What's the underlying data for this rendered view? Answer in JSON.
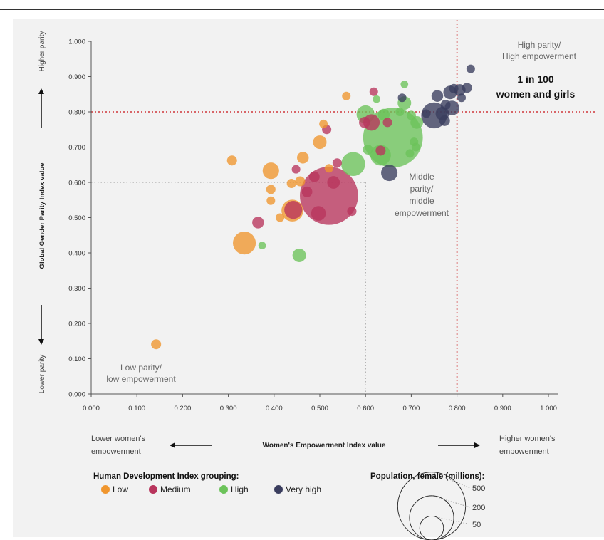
{
  "chart_data": {
    "type": "scatter",
    "title": "",
    "xlabel": "Women's Empowerment Index value",
    "ylabel": "Global Gender Parity Index value",
    "xlim": [
      0,
      1
    ],
    "ylim": [
      0,
      1
    ],
    "x_ticks": [
      "0.000",
      "0.100",
      "0.200",
      "0.300",
      "0.400",
      "0.500",
      "0.600",
      "0.700",
      "0.800",
      "0.900",
      "1.000"
    ],
    "y_ticks": [
      "0.000",
      "0.100",
      "0.200",
      "0.300",
      "0.400",
      "0.500",
      "0.600",
      "0.700",
      "0.800",
      "0.900",
      "1.000"
    ],
    "threshold_high": 0.8,
    "threshold_middle": 0.6,
    "y_arrow_top": "Higher parity",
    "y_arrow_bottom": "Lower parity",
    "x_arrow_left": [
      "Lower women's",
      "empowerment"
    ],
    "x_arrow_right": [
      "Higher women's",
      "empowerment"
    ],
    "annotations": {
      "high": [
        "High parity/",
        "High empowerment"
      ],
      "highlight": [
        "1 in 100",
        "women and girls"
      ],
      "middle": [
        "Middle",
        "parity/",
        "middle",
        "empowerment"
      ],
      "low": [
        "Low parity/",
        "low empowerment"
      ]
    },
    "legend_title": "Human Development Index grouping:",
    "series": [
      {
        "name": "Low",
        "color": "#f0962e"
      },
      {
        "name": "Medium",
        "color": "#b8345c"
      },
      {
        "name": "High",
        "color": "#6cc35a"
      },
      {
        "name": "Very high",
        "color": "#3a3d5e"
      }
    ],
    "size_legend_title": "Population, female (millions):",
    "size_legend_values": [
      500,
      200,
      50
    ],
    "points": [
      {
        "x": 0.142,
        "y": 0.141,
        "pop": 5,
        "g": "Low"
      },
      {
        "x": 0.335,
        "y": 0.428,
        "pop": 45,
        "g": "Low"
      },
      {
        "x": 0.308,
        "y": 0.662,
        "pop": 5,
        "g": "Low"
      },
      {
        "x": 0.393,
        "y": 0.633,
        "pop": 20,
        "g": "Low"
      },
      {
        "x": 0.393,
        "y": 0.58,
        "pop": 4,
        "g": "Low"
      },
      {
        "x": 0.393,
        "y": 0.548,
        "pop": 3,
        "g": "Low"
      },
      {
        "x": 0.413,
        "y": 0.5,
        "pop": 3,
        "g": "Low"
      },
      {
        "x": 0.44,
        "y": 0.52,
        "pop": 40,
        "g": "Low"
      },
      {
        "x": 0.457,
        "y": 0.603,
        "pop": 5,
        "g": "Low"
      },
      {
        "x": 0.463,
        "y": 0.67,
        "pop": 8,
        "g": "Low"
      },
      {
        "x": 0.438,
        "y": 0.597,
        "pop": 4,
        "g": "Low"
      },
      {
        "x": 0.5,
        "y": 0.714,
        "pop": 12,
        "g": "Low"
      },
      {
        "x": 0.508,
        "y": 0.766,
        "pop": 3,
        "g": "Low"
      },
      {
        "x": 0.558,
        "y": 0.845,
        "pop": 3,
        "g": "Low"
      },
      {
        "x": 0.52,
        "y": 0.64,
        "pop": 3,
        "g": "Low"
      },
      {
        "x": 0.365,
        "y": 0.486,
        "pop": 8,
        "g": "Medium"
      },
      {
        "x": 0.442,
        "y": 0.522,
        "pop": 25,
        "g": "Medium"
      },
      {
        "x": 0.448,
        "y": 0.637,
        "pop": 3,
        "g": "Medium"
      },
      {
        "x": 0.472,
        "y": 0.573,
        "pop": 6,
        "g": "Medium"
      },
      {
        "x": 0.488,
        "y": 0.616,
        "pop": 6,
        "g": "Medium"
      },
      {
        "x": 0.497,
        "y": 0.512,
        "pop": 15,
        "g": "Medium"
      },
      {
        "x": 0.52,
        "y": 0.562,
        "pop": 360,
        "g": "Medium"
      },
      {
        "x": 0.53,
        "y": 0.6,
        "pop": 10,
        "g": "Medium"
      },
      {
        "x": 0.515,
        "y": 0.75,
        "pop": 4,
        "g": "Medium"
      },
      {
        "x": 0.538,
        "y": 0.655,
        "pop": 4,
        "g": "Medium"
      },
      {
        "x": 0.57,
        "y": 0.518,
        "pop": 4,
        "g": "Medium"
      },
      {
        "x": 0.598,
        "y": 0.77,
        "pop": 7,
        "g": "Medium"
      },
      {
        "x": 0.613,
        "y": 0.77,
        "pop": 20,
        "g": "Medium"
      },
      {
        "x": 0.618,
        "y": 0.857,
        "pop": 3,
        "g": "Medium"
      },
      {
        "x": 0.633,
        "y": 0.69,
        "pop": 5,
        "g": "Medium"
      },
      {
        "x": 0.648,
        "y": 0.77,
        "pop": 4,
        "g": "Medium"
      },
      {
        "x": 0.455,
        "y": 0.393,
        "pop": 12,
        "g": "High"
      },
      {
        "x": 0.374,
        "y": 0.421,
        "pop": 2,
        "g": "High"
      },
      {
        "x": 0.573,
        "y": 0.652,
        "pop": 50,
        "g": "High"
      },
      {
        "x": 0.6,
        "y": 0.793,
        "pop": 25,
        "g": "High"
      },
      {
        "x": 0.605,
        "y": 0.693,
        "pop": 5,
        "g": "High"
      },
      {
        "x": 0.64,
        "y": 0.792,
        "pop": 8,
        "g": "High"
      },
      {
        "x": 0.633,
        "y": 0.677,
        "pop": 35,
        "g": "High"
      },
      {
        "x": 0.66,
        "y": 0.727,
        "pop": 380,
        "g": "High"
      },
      {
        "x": 0.675,
        "y": 0.8,
        "pop": 3,
        "g": "High"
      },
      {
        "x": 0.685,
        "y": 0.825,
        "pop": 12,
        "g": "High"
      },
      {
        "x": 0.7,
        "y": 0.79,
        "pop": 4,
        "g": "High"
      },
      {
        "x": 0.697,
        "y": 0.682,
        "pop": 3,
        "g": "High"
      },
      {
        "x": 0.706,
        "y": 0.715,
        "pop": 3,
        "g": "High"
      },
      {
        "x": 0.712,
        "y": 0.77,
        "pop": 10,
        "g": "High"
      },
      {
        "x": 0.71,
        "y": 0.7,
        "pop": 3,
        "g": "High"
      },
      {
        "x": 0.685,
        "y": 0.878,
        "pop": 2,
        "g": "High"
      },
      {
        "x": 0.624,
        "y": 0.836,
        "pop": 2,
        "g": "High"
      },
      {
        "x": 0.652,
        "y": 0.627,
        "pop": 20,
        "g": "Very high"
      },
      {
        "x": 0.68,
        "y": 0.84,
        "pop": 3,
        "g": "Very high"
      },
      {
        "x": 0.733,
        "y": 0.795,
        "pop": 3,
        "g": "Very high"
      },
      {
        "x": 0.75,
        "y": 0.79,
        "pop": 60,
        "g": "Very high"
      },
      {
        "x": 0.757,
        "y": 0.845,
        "pop": 8,
        "g": "Very high"
      },
      {
        "x": 0.768,
        "y": 0.795,
        "pop": 12,
        "g": "Very high"
      },
      {
        "x": 0.773,
        "y": 0.775,
        "pop": 6,
        "g": "Very high"
      },
      {
        "x": 0.775,
        "y": 0.82,
        "pop": 5,
        "g": "Very high"
      },
      {
        "x": 0.785,
        "y": 0.855,
        "pop": 12,
        "g": "Very high"
      },
      {
        "x": 0.789,
        "y": 0.811,
        "pop": 15,
        "g": "Very high"
      },
      {
        "x": 0.793,
        "y": 0.866,
        "pop": 4,
        "g": "Very high"
      },
      {
        "x": 0.806,
        "y": 0.862,
        "pop": 8,
        "g": "Very high"
      },
      {
        "x": 0.81,
        "y": 0.84,
        "pop": 3,
        "g": "Very high"
      },
      {
        "x": 0.822,
        "y": 0.868,
        "pop": 5,
        "g": "Very high"
      },
      {
        "x": 0.83,
        "y": 0.922,
        "pop": 3,
        "g": "Very high"
      }
    ]
  }
}
